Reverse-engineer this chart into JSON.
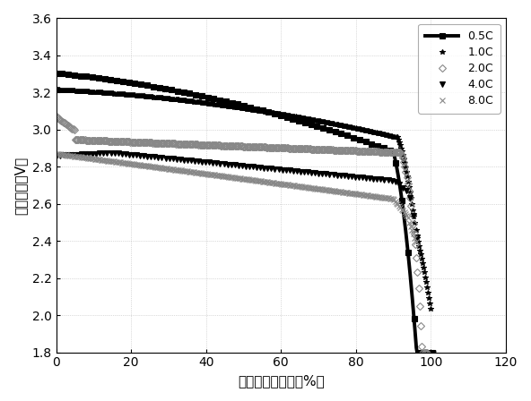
{
  "title": "",
  "xlabel": "放电容量保持率（%）",
  "ylabel": "放电电压（V）",
  "xlim": [
    0,
    120
  ],
  "ylim": [
    1.8,
    3.6
  ],
  "xticks": [
    0,
    20,
    40,
    60,
    80,
    100,
    120
  ],
  "yticks": [
    1.8,
    2.0,
    2.2,
    2.4,
    2.6,
    2.8,
    3.0,
    3.2,
    3.4,
    3.6
  ],
  "background_color": "#ffffff",
  "series": [
    {
      "label": "0.5C",
      "color": "#000000",
      "linestyle": "-",
      "marker": "s",
      "markersize": 4,
      "linewidth": 2.8,
      "markerfacecolor": "black",
      "markeredgecolor": "black",
      "marker_every": 8
    },
    {
      "label": "1.0C",
      "color": "#222222",
      "linestyle": "None",
      "marker": "*",
      "markersize": 4,
      "linewidth": 0,
      "markerfacecolor": "black",
      "markeredgecolor": "black",
      "marker_every": 1
    },
    {
      "label": "2.0C",
      "color": "#888888",
      "linestyle": "None",
      "marker": "D",
      "markersize": 4,
      "linewidth": 0,
      "markerfacecolor": "none",
      "markeredgecolor": "#888888",
      "marker_every": 1
    },
    {
      "label": "4.0C",
      "color": "#333333",
      "linestyle": "None",
      "marker": "v",
      "markersize": 5,
      "linewidth": 0,
      "markerfacecolor": "black",
      "markeredgecolor": "black",
      "marker_every": 3
    },
    {
      "label": "8.0C",
      "color": "#888888",
      "linestyle": "None",
      "marker": "x",
      "markersize": 4,
      "linewidth": 0,
      "markerfacecolor": "none",
      "markeredgecolor": "#888888",
      "marker_every": 1
    }
  ],
  "legend_loc": "upper right",
  "fontsize": 11,
  "tick_fontsize": 10
}
